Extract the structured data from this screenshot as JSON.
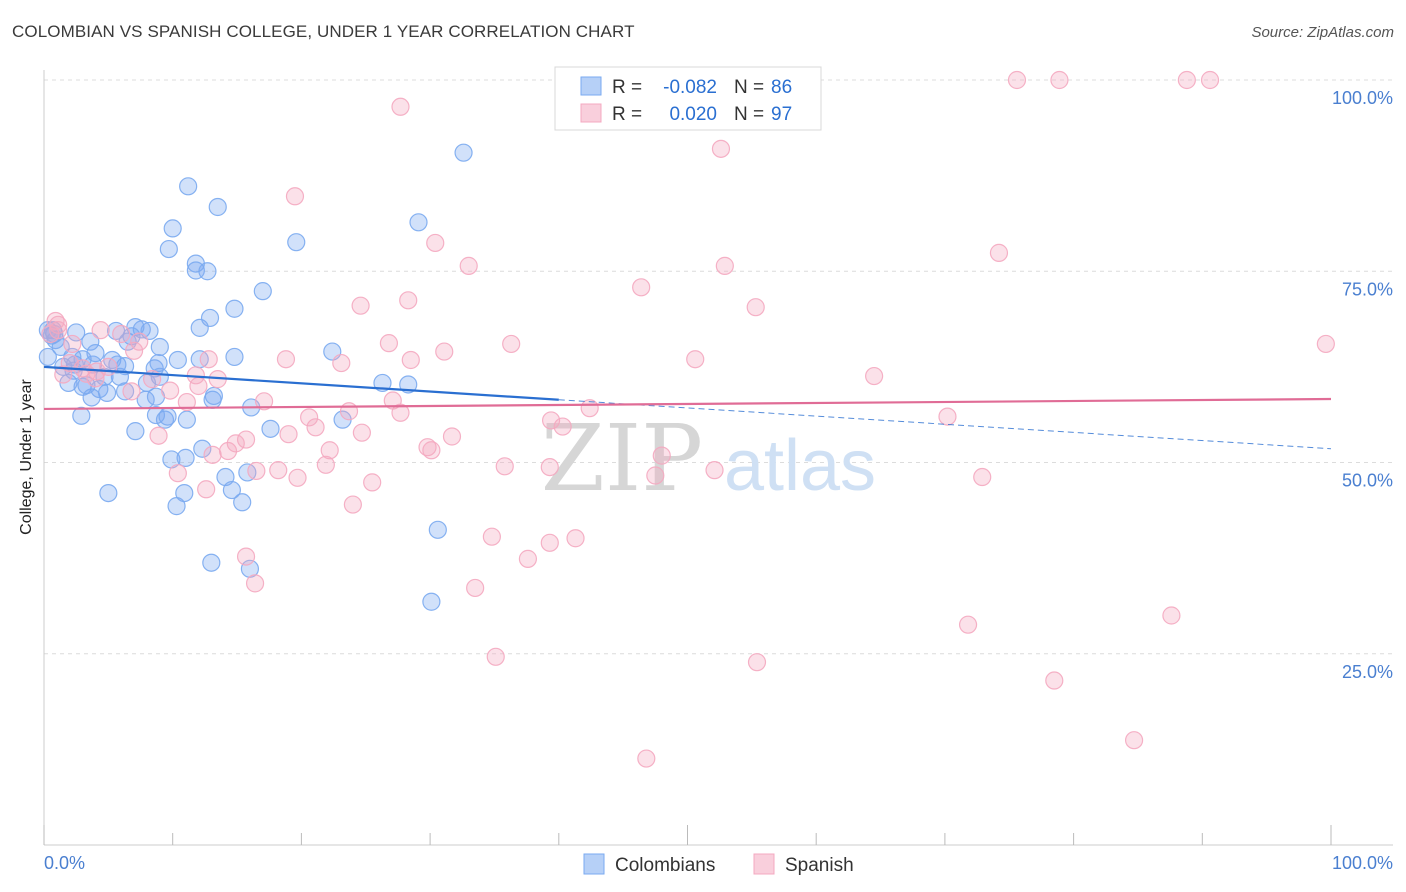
{
  "title": "COLOMBIAN VS SPANISH COLLEGE, UNDER 1 YEAR CORRELATION CHART",
  "source": "Source: ZipAtlas.com",
  "watermark": {
    "zip": "ZIP",
    "atlas": "atlas"
  },
  "chart_data": {
    "type": "scatter",
    "xlabel": "",
    "ylabel": "College, Under 1 year",
    "xlim": [
      0,
      100
    ],
    "ylim": [
      0,
      105
    ],
    "x_tick_labels": [
      {
        "value": 0,
        "label": "0.0%"
      },
      {
        "value": 100,
        "label": "100.0%"
      }
    ],
    "y_tick_labels": [
      {
        "value": 25,
        "label": "25.0%"
      },
      {
        "value": 50,
        "label": "50.0%"
      },
      {
        "value": 75,
        "label": "75.0%"
      },
      {
        "value": 100,
        "label": "100.0%"
      }
    ],
    "legend_position": "top-center",
    "stats": [
      {
        "r_label": "R =",
        "r_value": "-0.082",
        "n_label": "N =",
        "n_value": "86"
      },
      {
        "r_label": "R =",
        "r_value": "0.020",
        "n_label": "N =",
        "n_value": "97"
      }
    ],
    "series": [
      {
        "name": "Colombians",
        "color": "#7aaaf0",
        "line_color": "#2a6fd1",
        "trend": {
          "x0": 0,
          "y0": 62.5,
          "x1": 40,
          "y1": 58.2,
          "dash_x1": 100,
          "dash_y1": 51.8
        },
        "points": [
          [
            32.6,
            90.5
          ],
          [
            11.2,
            86.1
          ],
          [
            13.5,
            83.4
          ],
          [
            29.1,
            81.4
          ],
          [
            10.0,
            80.6
          ],
          [
            19.6,
            78.8
          ],
          [
            9.7,
            77.9
          ],
          [
            11.8,
            76.0
          ],
          [
            11.8,
            75.1
          ],
          [
            12.7,
            75.0
          ],
          [
            17.0,
            72.4
          ],
          [
            14.8,
            70.1
          ],
          [
            12.9,
            68.9
          ],
          [
            12.1,
            67.6
          ],
          [
            0.3,
            67.3
          ],
          [
            0.7,
            67.3
          ],
          [
            0.8,
            66.8
          ],
          [
            2.5,
            67.0
          ],
          [
            5.6,
            67.2
          ],
          [
            7.1,
            67.7
          ],
          [
            8.2,
            67.2
          ],
          [
            0.9,
            66.0
          ],
          [
            0.6,
            66.6
          ],
          [
            3.6,
            65.8
          ],
          [
            1.3,
            65.1
          ],
          [
            6.5,
            65.8
          ],
          [
            9.0,
            65.1
          ],
          [
            2.2,
            63.8
          ],
          [
            22.4,
            64.5
          ],
          [
            0.3,
            63.8
          ],
          [
            14.8,
            63.8
          ],
          [
            10.4,
            63.4
          ],
          [
            5.3,
            63.4
          ],
          [
            2.4,
            62.8
          ],
          [
            3.0,
            63.5
          ],
          [
            3.8,
            62.8
          ],
          [
            6.3,
            62.6
          ],
          [
            8.6,
            62.3
          ],
          [
            2.3,
            62.0
          ],
          [
            4.7,
            61.2
          ],
          [
            5.9,
            61.2
          ],
          [
            1.9,
            60.4
          ],
          [
            8.0,
            60.4
          ],
          [
            26.3,
            60.4
          ],
          [
            28.3,
            60.2
          ],
          [
            3.0,
            59.9
          ],
          [
            4.3,
            59.6
          ],
          [
            6.3,
            59.3
          ],
          [
            4.9,
            59.1
          ],
          [
            3.7,
            58.5
          ],
          [
            7.9,
            58.2
          ],
          [
            13.2,
            58.7
          ],
          [
            8.7,
            58.6
          ],
          [
            13.1,
            58.2
          ],
          [
            16.1,
            57.2
          ],
          [
            8.7,
            56.2
          ],
          [
            2.9,
            56.1
          ],
          [
            9.4,
            55.6
          ],
          [
            11.1,
            55.6
          ],
          [
            23.2,
            55.6
          ],
          [
            7.1,
            54.1
          ],
          [
            17.6,
            54.4
          ],
          [
            12.3,
            51.8
          ],
          [
            11.0,
            50.6
          ],
          [
            9.9,
            50.4
          ],
          [
            14.1,
            48.1
          ],
          [
            15.8,
            48.7
          ],
          [
            14.6,
            46.4
          ],
          [
            10.9,
            46.0
          ],
          [
            5.0,
            46.0
          ],
          [
            15.4,
            44.8
          ],
          [
            10.3,
            44.3
          ],
          [
            30.6,
            41.2
          ],
          [
            13.0,
            36.9
          ],
          [
            16.0,
            36.1
          ],
          [
            30.1,
            31.8
          ],
          [
            7.6,
            67.4
          ],
          [
            4.0,
            64.3
          ],
          [
            6.8,
            66.5
          ],
          [
            8.9,
            63.0
          ],
          [
            1.5,
            62.5
          ],
          [
            12.1,
            63.5
          ],
          [
            9.6,
            56.0
          ],
          [
            3.3,
            60.1
          ],
          [
            5.7,
            62.8
          ],
          [
            9.0,
            61.2
          ]
        ]
      },
      {
        "name": "Spanish",
        "color": "#f4a8c0",
        "line_color": "#e06c96",
        "trend": {
          "x0": 0,
          "y0": 57.0,
          "x1": 100,
          "y1": 58.3
        },
        "points": [
          [
            75.6,
            100.0
          ],
          [
            78.9,
            100.0
          ],
          [
            88.8,
            100.0
          ],
          [
            90.6,
            100.0
          ],
          [
            27.7,
            96.5
          ],
          [
            52.6,
            91.0
          ],
          [
            19.5,
            84.8
          ],
          [
            30.4,
            78.7
          ],
          [
            74.2,
            77.4
          ],
          [
            33.0,
            75.7
          ],
          [
            52.9,
            75.7
          ],
          [
            46.4,
            72.9
          ],
          [
            28.3,
            71.2
          ],
          [
            24.6,
            70.5
          ],
          [
            55.3,
            70.3
          ],
          [
            0.9,
            68.5
          ],
          [
            1.1,
            68.0
          ],
          [
            1.1,
            67.3
          ],
          [
            0.5,
            66.8
          ],
          [
            4.4,
            67.3
          ],
          [
            6.0,
            66.8
          ],
          [
            7.4,
            65.8
          ],
          [
            26.8,
            65.6
          ],
          [
            36.3,
            65.5
          ],
          [
            31.1,
            64.5
          ],
          [
            99.6,
            65.5
          ],
          [
            2.2,
            65.5
          ],
          [
            7.0,
            64.6
          ],
          [
            18.8,
            63.5
          ],
          [
            28.5,
            63.4
          ],
          [
            12.8,
            63.5
          ],
          [
            5.0,
            62.5
          ],
          [
            23.1,
            63.0
          ],
          [
            50.6,
            63.5
          ],
          [
            64.5,
            61.3
          ],
          [
            3.0,
            62.3
          ],
          [
            3.3,
            61.6
          ],
          [
            4.1,
            61.9
          ],
          [
            1.5,
            61.5
          ],
          [
            11.8,
            61.4
          ],
          [
            13.5,
            60.9
          ],
          [
            8.4,
            60.9
          ],
          [
            4.0,
            61.0
          ],
          [
            9.8,
            59.4
          ],
          [
            6.8,
            59.3
          ],
          [
            27.1,
            58.1
          ],
          [
            11.1,
            57.9
          ],
          [
            17.1,
            58.0
          ],
          [
            42.4,
            57.1
          ],
          [
            27.7,
            56.5
          ],
          [
            23.7,
            56.7
          ],
          [
            20.6,
            55.9
          ],
          [
            39.4,
            55.5
          ],
          [
            70.2,
            56.0
          ],
          [
            40.3,
            54.7
          ],
          [
            24.7,
            53.9
          ],
          [
            21.1,
            54.6
          ],
          [
            19.0,
            53.7
          ],
          [
            8.9,
            53.5
          ],
          [
            31.7,
            53.4
          ],
          [
            15.7,
            53.0
          ],
          [
            14.9,
            52.5
          ],
          [
            29.8,
            52.0
          ],
          [
            30.1,
            51.6
          ],
          [
            14.3,
            51.5
          ],
          [
            22.2,
            51.6
          ],
          [
            13.1,
            51.0
          ],
          [
            48.0,
            50.9
          ],
          [
            21.9,
            49.7
          ],
          [
            35.8,
            49.5
          ],
          [
            39.3,
            49.4
          ],
          [
            52.1,
            49.0
          ],
          [
            16.5,
            48.9
          ],
          [
            18.2,
            49.0
          ],
          [
            10.4,
            48.6
          ],
          [
            47.5,
            48.3
          ],
          [
            72.9,
            48.1
          ],
          [
            19.7,
            48.0
          ],
          [
            12.6,
            46.5
          ],
          [
            25.5,
            47.4
          ],
          [
            24.0,
            44.5
          ],
          [
            34.8,
            40.3
          ],
          [
            41.3,
            40.1
          ],
          [
            39.3,
            39.5
          ],
          [
            37.6,
            37.4
          ],
          [
            15.7,
            37.7
          ],
          [
            16.4,
            34.2
          ],
          [
            33.5,
            33.6
          ],
          [
            87.6,
            30.0
          ],
          [
            71.8,
            28.8
          ],
          [
            35.1,
            24.6
          ],
          [
            55.4,
            23.9
          ],
          [
            78.5,
            21.5
          ],
          [
            84.7,
            13.7
          ],
          [
            46.8,
            11.3
          ],
          [
            2.0,
            63.0
          ],
          [
            12.0,
            60.0
          ]
        ]
      }
    ]
  }
}
